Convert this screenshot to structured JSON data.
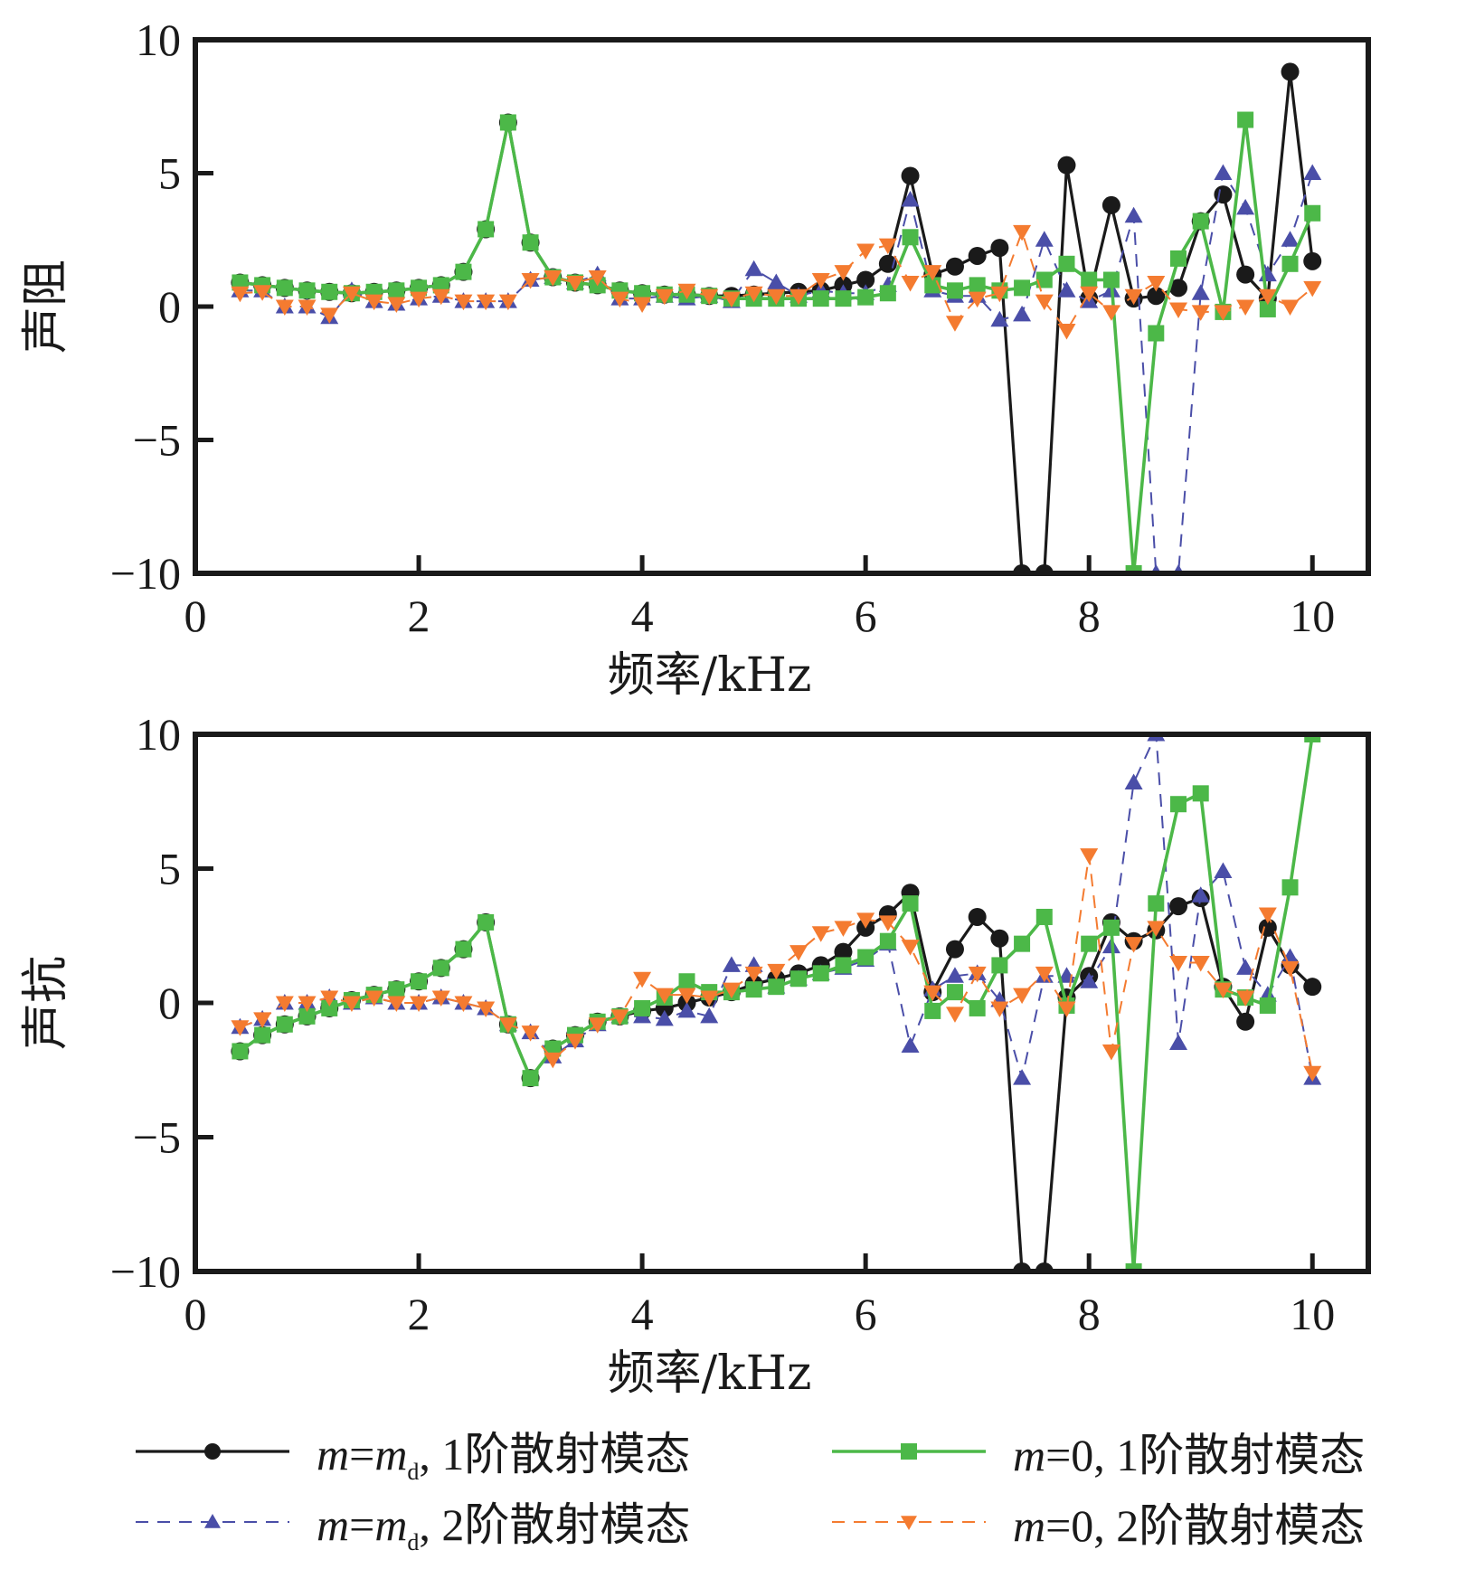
{
  "chart_data": [
    {
      "type": "line",
      "ylabel": "声阻",
      "xlabel": "频率/kHz",
      "xlim": [
        0,
        10.5
      ],
      "ylim": [
        -10,
        10
      ],
      "xticks": [
        "0",
        "2",
        "4",
        "6",
        "8",
        "10"
      ],
      "yticks": [
        "10",
        "5",
        "0",
        "−5",
        "−10"
      ],
      "x": [
        0.4,
        0.6,
        0.8,
        1.0,
        1.2,
        1.4,
        1.6,
        1.8,
        2.0,
        2.2,
        2.4,
        2.6,
        2.8,
        3.0,
        3.2,
        3.4,
        3.6,
        3.8,
        4.0,
        4.2,
        4.4,
        4.6,
        4.8,
        5.0,
        5.2,
        5.4,
        5.6,
        5.8,
        6.0,
        6.2,
        6.4,
        6.6,
        6.8,
        7.0,
        7.2,
        7.4,
        7.6,
        7.8,
        8.0,
        8.2,
        8.4,
        8.6,
        8.8,
        9.0,
        9.2,
        9.4,
        9.6,
        9.8,
        10.0
      ],
      "series": [
        {
          "name": "m=md,1阶散射模态",
          "values": [
            0.9,
            0.8,
            0.7,
            0.6,
            0.55,
            0.5,
            0.55,
            0.6,
            0.7,
            0.8,
            1.3,
            2.9,
            6.9,
            2.4,
            1.1,
            0.9,
            0.8,
            0.6,
            0.5,
            0.45,
            0.45,
            0.4,
            0.4,
            0.45,
            0.5,
            0.55,
            0.6,
            0.8,
            1.0,
            1.6,
            4.9,
            1.2,
            1.5,
            1.9,
            2.2,
            -10,
            -10,
            5.3,
            0.3,
            3.8,
            0.3,
            0.4,
            0.7,
            3.2,
            4.2,
            1.2,
            0.3,
            8.8,
            1.7
          ]
        },
        {
          "name": "m=md,2阶散射模态",
          "values": [
            0.6,
            0.6,
            0.0,
            0.0,
            -0.4,
            0.6,
            0.2,
            0.1,
            0.3,
            0.4,
            0.2,
            0.2,
            0.2,
            1.0,
            1.1,
            0.9,
            1.2,
            0.3,
            0.3,
            0.4,
            0.3,
            0.4,
            0.2,
            1.4,
            0.9,
            0.4,
            0.6,
            0.5,
            0.5,
            0.8,
            4.0,
            0.6,
            0.4,
            0.4,
            -0.5,
            -0.3,
            2.5,
            0.6,
            0.2,
            0.6,
            3.4,
            -10,
            -10,
            0.5,
            5.0,
            3.7,
            1.2,
            2.5,
            5.0
          ]
        },
        {
          "name": "m=0,1阶散射模态",
          "values": [
            0.9,
            0.8,
            0.7,
            0.6,
            0.55,
            0.5,
            0.55,
            0.6,
            0.7,
            0.8,
            1.3,
            2.9,
            6.9,
            2.4,
            1.1,
            0.9,
            0.8,
            0.6,
            0.5,
            0.45,
            0.45,
            0.4,
            0.3,
            0.3,
            0.3,
            0.3,
            0.3,
            0.3,
            0.35,
            0.5,
            2.6,
            0.8,
            0.6,
            0.8,
            0.6,
            0.7,
            1.0,
            1.6,
            1.0,
            1.0,
            -10,
            -1.0,
            1.8,
            3.2,
            -0.2,
            7.0,
            -0.1,
            1.6,
            3.5
          ]
        },
        {
          "name": "m=0,2阶散射模态",
          "values": [
            0.5,
            0.55,
            0.0,
            0.0,
            -0.3,
            0.5,
            0.2,
            0.1,
            0.3,
            0.4,
            0.2,
            0.2,
            0.2,
            1.0,
            1.1,
            0.9,
            1.1,
            0.3,
            0.1,
            0.4,
            0.6,
            0.4,
            0.3,
            0.5,
            0.4,
            0.4,
            1.0,
            1.3,
            2.1,
            2.3,
            0.9,
            1.3,
            -0.6,
            0.3,
            0.5,
            2.8,
            0.2,
            -0.9,
            0.5,
            -0.2,
            0.4,
            0.9,
            -0.1,
            -0.2,
            -0.2,
            0.0,
            0.4,
            0.0,
            0.7
          ]
        }
      ]
    },
    {
      "type": "line",
      "ylabel": "声抗",
      "xlabel": "频率/kHz",
      "xlim": [
        0,
        10.5
      ],
      "ylim": [
        -10,
        10
      ],
      "xticks": [
        "0",
        "2",
        "4",
        "6",
        "8",
        "10"
      ],
      "yticks": [
        "10",
        "5",
        "0",
        "−5",
        "−10"
      ],
      "x": [
        0.4,
        0.6,
        0.8,
        1.0,
        1.2,
        1.4,
        1.6,
        1.8,
        2.0,
        2.2,
        2.4,
        2.6,
        2.8,
        3.0,
        3.2,
        3.4,
        3.6,
        3.8,
        4.0,
        4.2,
        4.4,
        4.6,
        4.8,
        5.0,
        5.2,
        5.4,
        5.6,
        5.8,
        6.0,
        6.2,
        6.4,
        6.6,
        6.8,
        7.0,
        7.2,
        7.4,
        7.6,
        7.8,
        8.0,
        8.2,
        8.4,
        8.6,
        8.8,
        9.0,
        9.2,
        9.4,
        9.6,
        9.8,
        10.0
      ],
      "series": [
        {
          "name": "m=md,1阶散射模态",
          "values": [
            -1.8,
            -1.2,
            -0.8,
            -0.5,
            -0.2,
            0.1,
            0.3,
            0.5,
            0.8,
            1.3,
            2.0,
            3.0,
            -0.8,
            -2.8,
            -1.7,
            -1.2,
            -0.7,
            -0.5,
            -0.3,
            -0.2,
            0.0,
            0.2,
            0.4,
            0.7,
            0.9,
            1.1,
            1.4,
            1.9,
            2.8,
            3.3,
            4.1,
            0.4,
            2.0,
            3.2,
            2.4,
            -10,
            -10,
            0.2,
            1.0,
            3.0,
            2.3,
            2.7,
            3.6,
            3.9,
            0.6,
            -0.7,
            2.8,
            1.4,
            0.6
          ]
        },
        {
          "name": "m=md,2阶散射模态",
          "values": [
            -0.9,
            -0.6,
            0.0,
            0.0,
            0.2,
            0.0,
            0.2,
            0.0,
            0.0,
            0.2,
            0.0,
            -0.2,
            -0.8,
            -1.1,
            -2.0,
            -1.4,
            -0.8,
            -0.5,
            -0.5,
            -0.6,
            -0.3,
            -0.5,
            1.4,
            1.4,
            0.6,
            0.9,
            1.1,
            1.3,
            1.6,
            2.2,
            -1.6,
            0.5,
            1.0,
            1.1,
            0.1,
            -2.8,
            1.0,
            1.0,
            0.8,
            2.1,
            8.2,
            10,
            -1.5,
            4.0,
            4.9,
            1.3,
            0.3,
            1.7,
            -2.8
          ]
        },
        {
          "name": "m=0,1阶散射模态",
          "values": [
            -1.8,
            -1.2,
            -0.8,
            -0.5,
            -0.2,
            0.1,
            0.3,
            0.5,
            0.8,
            1.3,
            2.0,
            3.0,
            -0.8,
            -2.8,
            -1.7,
            -1.2,
            -0.7,
            -0.5,
            -0.2,
            0.2,
            0.8,
            0.4,
            0.4,
            0.5,
            0.6,
            0.9,
            1.1,
            1.4,
            1.7,
            2.3,
            3.7,
            -0.3,
            0.4,
            -0.2,
            1.4,
            2.2,
            3.2,
            -0.1,
            2.2,
            2.8,
            -10,
            3.7,
            7.4,
            7.8,
            0.5,
            0.2,
            -0.1,
            4.3,
            10
          ]
        },
        {
          "name": "m=0,2阶散射模态",
          "values": [
            -0.9,
            -0.6,
            0.0,
            0.0,
            0.2,
            0.0,
            0.2,
            0.0,
            0.0,
            0.2,
            0.0,
            -0.2,
            -0.8,
            -1.1,
            -2.1,
            -1.4,
            -0.8,
            -0.5,
            0.9,
            0.3,
            0.3,
            0.2,
            0.5,
            1.1,
            1.2,
            1.9,
            2.6,
            2.8,
            3.1,
            3.0,
            2.1,
            0.4,
            -0.4,
            1.1,
            -0.2,
            0.3,
            1.1,
            -0.2,
            5.5,
            -1.8,
            2.2,
            2.8,
            1.5,
            1.5,
            0.5,
            0.2,
            3.3,
            1.3,
            -2.6
          ]
        }
      ]
    }
  ],
  "legend": [
    {
      "prefix_italic": "m",
      "middle": "=",
      "mid_italic": "m",
      "sub": "d",
      "suffix": ", 1阶散射模态",
      "color": "#1a1a1a",
      "marker": "circle",
      "dash": false
    },
    {
      "prefix_italic": "m",
      "middle": "=",
      "mid_italic": "m",
      "sub": "d",
      "suffix": ", 2阶散射模态",
      "color": "#4a4ea8",
      "marker": "triangle-up",
      "dash": true
    },
    {
      "prefix_italic": "m",
      "middle": "=0, 1阶散射模态",
      "mid_italic": "",
      "sub": "",
      "suffix": "",
      "color": "#4cb848",
      "marker": "square",
      "dash": false
    },
    {
      "prefix_italic": "m",
      "middle": "=0, 2阶散射模态",
      "mid_italic": "",
      "sub": "",
      "suffix": "",
      "color": "#f47b30",
      "marker": "triangle-down",
      "dash": true
    }
  ]
}
